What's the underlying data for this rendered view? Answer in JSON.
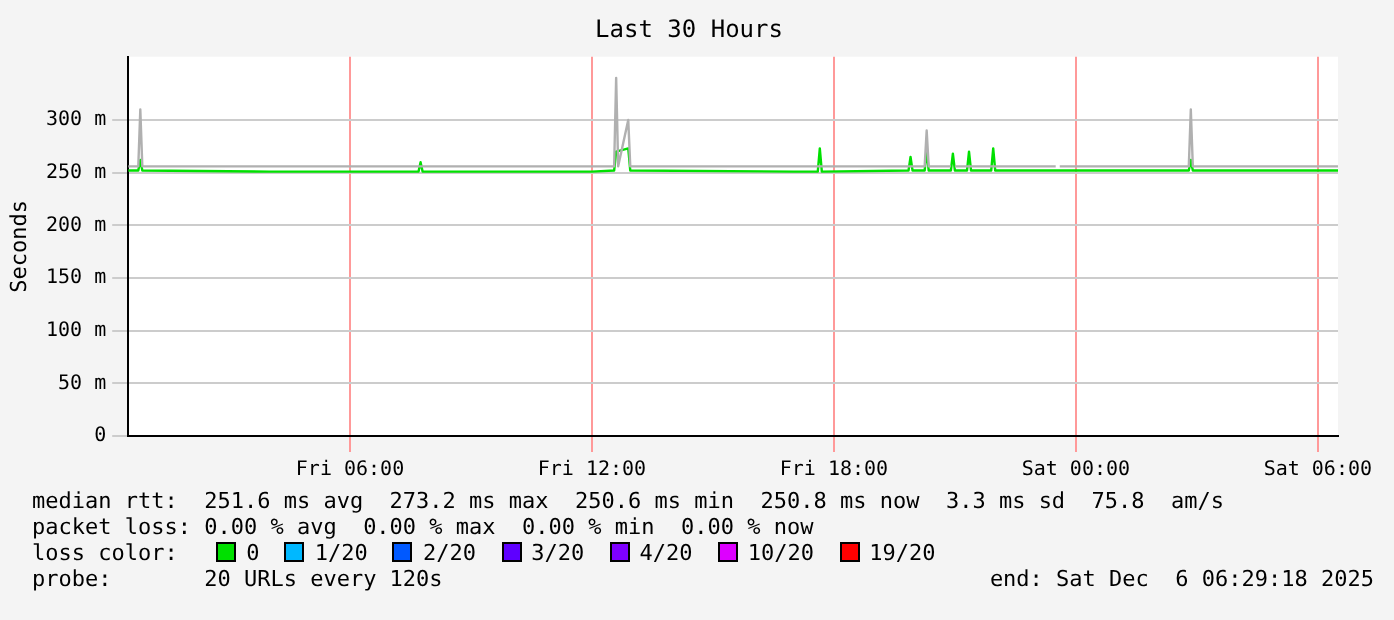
{
  "chart_data": {
    "type": "line",
    "title": "Last 30 Hours",
    "ylabel": "Seconds",
    "xlim": [
      "2025-12-05T00:30",
      "2025-12-06T06:30"
    ],
    "xticks": [
      {
        "value": "2025-12-05T06:00",
        "label": "Fri 06:00"
      },
      {
        "value": "2025-12-05T12:00",
        "label": "Fri 12:00"
      },
      {
        "value": "2025-12-05T18:00",
        "label": "Fri 18:00"
      },
      {
        "value": "2025-12-06T00:00",
        "label": "Sat 00:00"
      },
      {
        "value": "2025-12-06T06:00",
        "label": "Sat 06:00"
      }
    ],
    "ylim": [
      0,
      360
    ],
    "yticks": [
      0,
      {
        "value": 50,
        "label": "50 m"
      },
      {
        "value": 100,
        "label": "100 m"
      },
      {
        "value": 150,
        "label": "150 m"
      },
      {
        "value": 200,
        "label": "200 m"
      },
      {
        "value": 250,
        "label": "250 m"
      },
      {
        "value": 300,
        "label": "300 m"
      }
    ],
    "grid": true,
    "marker": "none",
    "legend": "bottom",
    "legend_title": "loss color:",
    "series": [
      {
        "color": "#b0b0b0",
        "x": [
          "2025-12-05T00:30",
          "2025-12-05T00:45",
          "2025-12-05T00:48",
          "2025-12-05T00:51",
          "2025-12-05T12:33",
          "2025-12-05T12:36",
          "2025-12-05T12:39",
          "2025-12-05T12:54",
          "2025-12-05T12:57",
          "2025-12-05T20:15",
          "2025-12-05T20:18",
          "2025-12-05T20:21",
          "2025-12-05T20:54",
          "2025-12-05T20:57",
          "2025-12-05T21:00",
          "2025-12-05T23:30",
          "2025-12-05T23:33",
          "2025-12-05T23:36",
          "2025-12-06T02:48",
          "2025-12-06T02:51",
          "2025-12-06T02:54",
          "2025-12-06T06:30"
        ],
        "values": [
          256,
          256,
          310,
          256,
          256,
          340,
          256,
          300,
          256,
          256,
          290,
          256,
          256,
          null,
          256,
          256,
          null,
          256,
          256,
          310,
          256,
          256
        ]
      },
      {
        "name": "0",
        "color": "#00e000",
        "x": [
          "2025-12-05T00:30",
          "2025-12-05T00:45",
          "2025-12-05T00:48",
          "2025-12-05T00:51",
          "2025-12-05T04:00",
          "2025-12-05T07:42",
          "2025-12-05T07:45",
          "2025-12-05T07:48",
          "2025-12-05T12:00",
          "2025-12-05T12:33",
          "2025-12-05T12:36",
          "2025-12-05T12:54",
          "2025-12-05T12:57",
          "2025-12-05T17:00",
          "2025-12-05T17:36",
          "2025-12-05T17:39",
          "2025-12-05T17:42",
          "2025-12-05T19:51",
          "2025-12-05T19:54",
          "2025-12-05T19:57",
          "2025-12-05T20:15",
          "2025-12-05T20:18",
          "2025-12-05T20:21",
          "2025-12-05T20:54",
          "2025-12-05T20:57",
          "2025-12-05T21:00",
          "2025-12-05T21:18",
          "2025-12-05T21:21",
          "2025-12-05T21:24",
          "2025-12-05T21:54",
          "2025-12-05T21:57",
          "2025-12-05T22:00",
          "2025-12-06T02:48",
          "2025-12-06T02:51",
          "2025-12-06T02:54",
          "2025-12-06T06:30"
        ],
        "values": [
          252,
          252,
          262,
          252,
          251,
          251,
          260,
          251,
          251,
          252,
          270,
          273,
          252,
          251,
          251,
          273,
          251,
          252,
          265,
          252,
          252,
          272,
          252,
          252,
          268,
          252,
          252,
          270,
          252,
          252,
          273,
          252,
          252,
          262,
          252,
          252
        ]
      },
      {
        "name": "1/20",
        "color": "#00b8ff"
      },
      {
        "name": "2/20",
        "color": "#0059ff"
      },
      {
        "name": "3/20",
        "color": "#5e00ff"
      },
      {
        "name": "4/20",
        "color": "#7e00ff"
      },
      {
        "name": "10/20",
        "color": "#dd00ff"
      },
      {
        "name": "19/20",
        "color": "#ff0000"
      }
    ],
    "annotations": [
      "median rtt:  251.6 ms avg  273.2 ms max  250.6 ms min  250.8 ms now  3.3 ms sd  75.8  am/s",
      "packet loss: 0.00 % avg  0.00 % max  0.00 % min  0.00 % now",
      "probe:       20 URLs every 120s",
      "end: Sat Dec  6 06:29:18 2025"
    ]
  }
}
